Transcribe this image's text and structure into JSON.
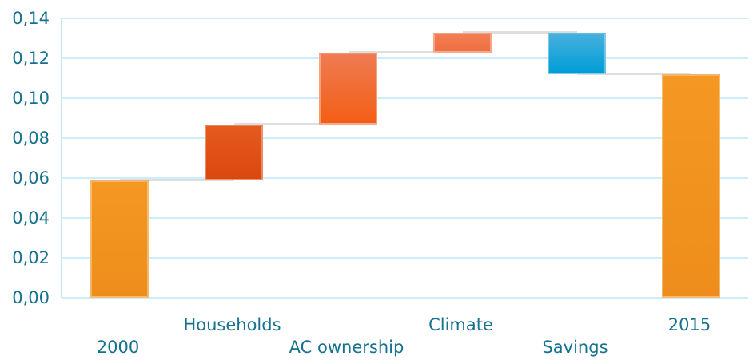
{
  "chart_data": {
    "type": "waterfall",
    "title": "",
    "categories": [
      "2000",
      "Households",
      "AC ownership",
      "Climate",
      "Savings",
      "2015"
    ],
    "bars": [
      {
        "category": "2000",
        "start": 0.0,
        "end": 0.059,
        "delta": 0.059,
        "role": "total",
        "color_top": "#F49823",
        "color_bottom": "#EE8D1B"
      },
      {
        "category": "Households",
        "start": 0.059,
        "end": 0.087,
        "delta": 0.028,
        "role": "increase",
        "color_top": "#E55A1F",
        "color_bottom": "#DB480F"
      },
      {
        "category": "AC ownership",
        "start": 0.087,
        "end": 0.123,
        "delta": 0.036,
        "role": "increase",
        "color_top": "#F07B52",
        "color_bottom": "#F25E15"
      },
      {
        "category": "Climate",
        "start": 0.123,
        "end": 0.133,
        "delta": 0.01,
        "role": "increase",
        "color_top": "#F37E53",
        "color_bottom": "#EF6F42"
      },
      {
        "category": "Savings",
        "start": 0.133,
        "end": 0.112,
        "delta": -0.021,
        "role": "decrease",
        "color_top": "#47AFDE",
        "color_bottom": "#009ED6"
      },
      {
        "category": "2015",
        "start": 0.0,
        "end": 0.112,
        "delta": 0.112,
        "role": "total",
        "color_top": "#F49823",
        "color_bottom": "#EE8D1B"
      }
    ],
    "y_axis": {
      "decimal_separator": ",",
      "ticks": [
        {
          "value": 0.0,
          "label": "0,00"
        },
        {
          "value": 0.02,
          "label": "0,02"
        },
        {
          "value": 0.04,
          "label": "0,04"
        },
        {
          "value": 0.06,
          "label": "0,06"
        },
        {
          "value": 0.08,
          "label": "0,08"
        },
        {
          "value": 0.1,
          "label": "0,10"
        },
        {
          "value": 0.12,
          "label": "0,12"
        },
        {
          "value": 0.14,
          "label": "0,14"
        }
      ]
    },
    "ylim": [
      0,
      0.14
    ],
    "xlabel": "",
    "ylabel": "",
    "grid": true,
    "legend": false,
    "colors": {
      "text": "#15718F",
      "gridline": "#CDEEF9",
      "axis_line": "#C4E9F4",
      "connector": "#DEDEDE",
      "background": "#FFFFFF"
    }
  }
}
